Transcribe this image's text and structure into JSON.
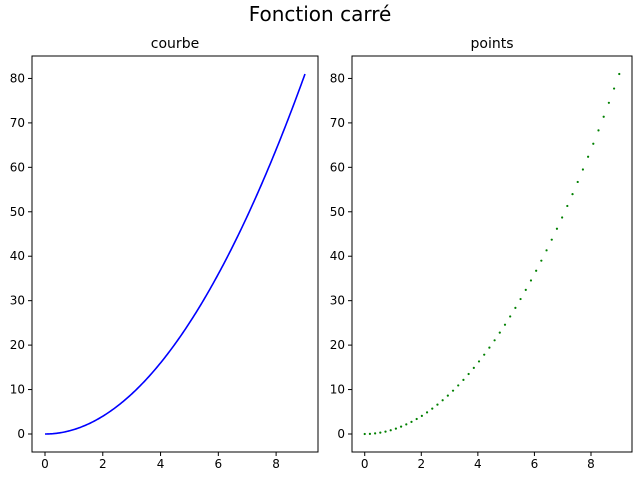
{
  "figure": {
    "suptitle": "Fonction carré"
  },
  "chart_data": [
    {
      "type": "line",
      "title": "courbe",
      "xlabel": "",
      "ylabel": "",
      "xlim": [
        -0.45,
        9.45
      ],
      "ylim": [
        -4.05,
        85.05
      ],
      "xticks": [
        0,
        2,
        4,
        6,
        8
      ],
      "yticks": [
        0,
        10,
        20,
        30,
        40,
        50,
        60,
        70,
        80
      ],
      "grid": false,
      "series": [
        {
          "color": "#0000ff",
          "style": "solid",
          "x": [
            0,
            0.5,
            1,
            1.5,
            2,
            2.5,
            3,
            3.5,
            4,
            4.5,
            5,
            5.5,
            6,
            6.5,
            7,
            7.5,
            8,
            8.5,
            9
          ],
          "y": [
            0,
            0.25,
            1,
            2.25,
            4,
            6.25,
            9,
            12.25,
            16,
            20.25,
            25,
            30.25,
            36,
            42.25,
            49,
            56.25,
            64,
            72.25,
            81
          ]
        }
      ]
    },
    {
      "type": "scatter",
      "title": "points",
      "xlabel": "",
      "ylabel": "",
      "xlim": [
        -0.45,
        9.45
      ],
      "ylim": [
        -4.05,
        85.05
      ],
      "xticks": [
        0,
        2,
        4,
        6,
        8
      ],
      "yticks": [
        0,
        10,
        20,
        30,
        40,
        50,
        60,
        70,
        80
      ],
      "grid": false,
      "series": [
        {
          "color": "#008000",
          "style": "dotted",
          "x_start": 0,
          "x_end": 9,
          "n_points": 50,
          "y": "x^2"
        }
      ]
    }
  ]
}
